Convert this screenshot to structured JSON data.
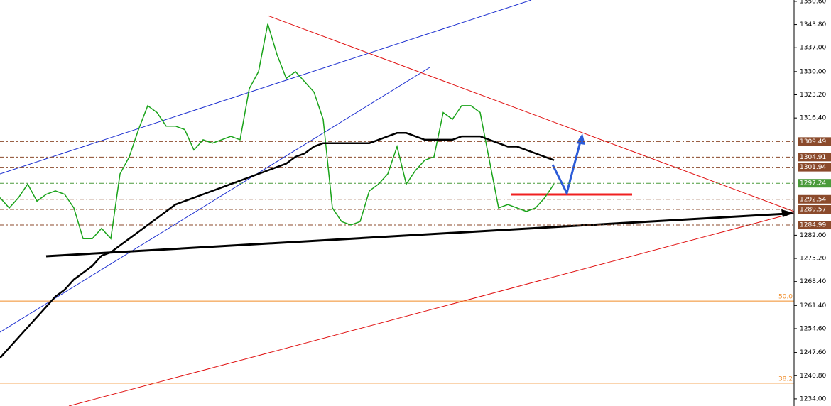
{
  "chart_data": {
    "type": "line",
    "series": [
      {
        "color": "#1aa31a",
        "values": [
          1293,
          1290,
          1293,
          1297,
          1292,
          1294,
          1295,
          1294,
          1290,
          1281,
          1281,
          1284,
          1281,
          1300,
          1305,
          1313,
          1320,
          1318,
          1314,
          1314,
          1313,
          1307,
          1310,
          1309,
          1310,
          1311,
          1310,
          1325,
          1330,
          1344,
          1335,
          1328,
          1330,
          1327,
          1324,
          1316,
          1290,
          1286,
          1285,
          1286,
          1295,
          1297,
          1300,
          1308,
          1297,
          1301,
          1304,
          1305,
          1318,
          1316,
          1320,
          1320,
          1318,
          1304,
          1290,
          1291,
          1290,
          1289,
          1290,
          1293,
          1297
        ]
      },
      {
        "color": "#000000",
        "values": [
          1246,
          1249,
          1252,
          1255,
          1258,
          1261,
          1264,
          1266,
          1269,
          1271,
          1273,
          1276,
          1277,
          1279,
          1281,
          1283,
          1285,
          1287,
          1289,
          1291,
          1292,
          1293,
          1294,
          1295,
          1296,
          1297,
          1298,
          1299,
          1300,
          1301,
          1302,
          1303,
          1305,
          1306,
          1308,
          1309,
          1309,
          1309,
          1309,
          1309,
          1309,
          1310,
          1311,
          1312,
          1312,
          1311,
          1310,
          1310,
          1310,
          1310,
          1311,
          1311,
          1311,
          1310,
          1309,
          1308,
          1308,
          1307,
          1306,
          1305,
          1304
        ]
      }
    ],
    "ylim": [
      1231.9,
      1351.0
    ],
    "yticks": [
      {
        "value": 1350.6,
        "label": "1350.60"
      },
      {
        "value": 1343.8,
        "label": "1343.80"
      },
      {
        "value": 1337.0,
        "label": "1337.00"
      },
      {
        "value": 1330.0,
        "label": "1330.00"
      },
      {
        "value": 1323.2,
        "label": "1323.20"
      },
      {
        "value": 1316.4,
        "label": "1316.40"
      },
      {
        "value": 1282.0,
        "label": "1282.00"
      },
      {
        "value": 1275.2,
        "label": "1275.20"
      },
      {
        "value": 1268.4,
        "label": "1268.40"
      },
      {
        "value": 1261.4,
        "label": "1261.40"
      },
      {
        "value": 1254.6,
        "label": "1254.60"
      },
      {
        "value": 1247.6,
        "label": "1247.60"
      },
      {
        "value": 1240.8,
        "label": "1240.80"
      },
      {
        "value": 1234.0,
        "label": "1234.00"
      }
    ],
    "levels": [
      1309.49,
      1304.91,
      1301.94,
      1297.24,
      1292.54,
      1289.57,
      1284.99
    ],
    "level_colors": [
      "#8b4a2b",
      "#8b4a2b",
      "#8b4a2b",
      "#4a9a3a",
      "#8b4a2b",
      "#8b4a2b",
      "#8b4a2b"
    ],
    "fib_levels": [
      {
        "value": 1262.7,
        "label": "50.0"
      },
      {
        "value": 1238.6,
        "label": "38.2"
      }
    ],
    "fib_color": "#f08c28"
  }
}
